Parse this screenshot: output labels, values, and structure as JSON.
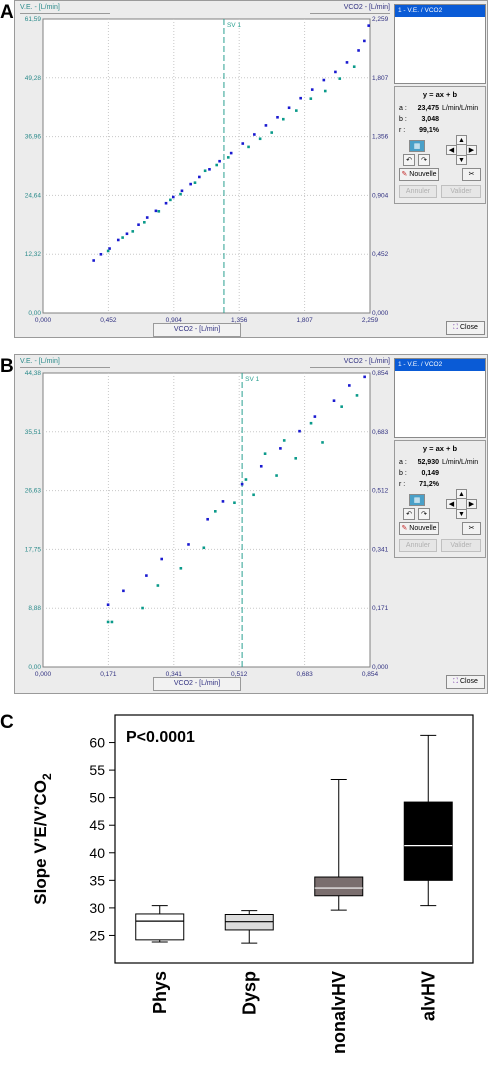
{
  "panels": [
    {
      "letter": "A",
      "left_tab": "V.E. - [L/min]",
      "right_tab": "VCO2 - [L/min]",
      "xlabel": "VCO2 - [L/min]",
      "sv_label": "SV 1",
      "yticks_left": [
        "61,59",
        "49,28",
        "36,96",
        "24,64",
        "12,32",
        "0,00"
      ],
      "yticks_right": [
        "2,259",
        "1,807",
        "1,356",
        "0,904",
        "0,452",
        "0,000"
      ],
      "xticks": [
        "0,000",
        "0,452",
        "0,904",
        "1,356",
        "1,807",
        "2,259"
      ],
      "list_item": "1 - V.E. / VCO2",
      "equation": "y = ax + b",
      "a_label": "a :",
      "a_value": "23,475",
      "a_unit": "L/min/L/min",
      "b_label": "b :",
      "b_value": "3,048",
      "r_label": "r :",
      "r_value": "99,1%",
      "new_button": "Nouvelle",
      "cancel_button": "Annuler",
      "validate_button": "Valider",
      "close_button": "Close"
    },
    {
      "letter": "B",
      "left_tab": "V.E. - [L/min]",
      "right_tab": "VCO2 - [L/min]",
      "xlabel": "VCO2 - [L/min]",
      "sv_label": "SV 1",
      "yticks_left": [
        "44,38",
        "35,51",
        "26,63",
        "17,75",
        "8,88",
        "0,00"
      ],
      "yticks_right": [
        "0,854",
        "0,683",
        "0,512",
        "0,341",
        "0,171",
        "0,000"
      ],
      "xticks": [
        "0,000",
        "0,171",
        "0,341",
        "0,512",
        "0,683",
        "0,854"
      ],
      "list_item": "1 - V.E. / VCO2",
      "equation": "y = ax + b",
      "a_label": "a :",
      "a_value": "52,930",
      "a_unit": "L/min/L/min",
      "b_label": "b :",
      "b_value": "0,149",
      "r_label": "r :",
      "r_value": "71,2%",
      "new_button": "Nouvelle",
      "cancel_button": "Annuler",
      "validate_button": "Valider",
      "close_button": "Close"
    }
  ],
  "panelC": {
    "letter": "C",
    "pvalue": "P<0.0001",
    "ylabel_main": "Slope V’E/V’CO",
    "ylabel_sub": "2"
  },
  "chart_data": [
    {
      "type": "scatter",
      "xlabel": "VCO2 - [L/min]",
      "ylabel": "V.E. - [L/min]",
      "xlim": [
        0,
        2.259
      ],
      "ylim": [
        0,
        61.59
      ],
      "regression": {
        "a": 23.475,
        "b": 3.048,
        "r": "99,1%"
      },
      "sv1_x": 1.25,
      "series": [
        {
          "color": "#1a1ad0",
          "points": [
            [
              0.35,
              11.0
            ],
            [
              0.4,
              12.3
            ],
            [
              0.46,
              13.5
            ],
            [
              0.52,
              15.3
            ],
            [
              0.58,
              16.6
            ],
            [
              0.66,
              18.5
            ],
            [
              0.72,
              20.0
            ],
            [
              0.78,
              21.4
            ],
            [
              0.85,
              23.0
            ],
            [
              0.9,
              24.3
            ],
            [
              0.96,
              25.6
            ],
            [
              1.02,
              27.0
            ],
            [
              1.08,
              28.5
            ],
            [
              1.15,
              30.1
            ],
            [
              1.22,
              31.8
            ],
            [
              1.3,
              33.5
            ],
            [
              1.38,
              35.5
            ],
            [
              1.46,
              37.4
            ],
            [
              1.54,
              39.3
            ],
            [
              1.62,
              41.0
            ],
            [
              1.7,
              43.0
            ],
            [
              1.78,
              45.0
            ],
            [
              1.86,
              46.8
            ],
            [
              1.94,
              48.8
            ],
            [
              2.02,
              50.5
            ],
            [
              2.1,
              52.5
            ],
            [
              2.18,
              55.0
            ],
            [
              2.22,
              57.0
            ],
            [
              2.25,
              60.2
            ]
          ]
        },
        {
          "color": "#0a9a8a",
          "points": [
            [
              0.45,
              13.0
            ],
            [
              0.55,
              15.8
            ],
            [
              0.62,
              17.1
            ],
            [
              0.7,
              19.0
            ],
            [
              0.8,
              21.3
            ],
            [
              0.88,
              23.7
            ],
            [
              0.95,
              24.9
            ],
            [
              1.05,
              27.3
            ],
            [
              1.12,
              29.8
            ],
            [
              1.2,
              31.0
            ],
            [
              1.28,
              32.6
            ],
            [
              1.42,
              34.8
            ],
            [
              1.5,
              36.5
            ],
            [
              1.58,
              37.8
            ],
            [
              1.66,
              40.6
            ],
            [
              1.75,
              42.4
            ],
            [
              1.85,
              44.9
            ],
            [
              1.95,
              46.5
            ],
            [
              2.05,
              49.1
            ],
            [
              2.15,
              51.6
            ]
          ]
        }
      ]
    },
    {
      "type": "scatter",
      "xlabel": "VCO2 - [L/min]",
      "ylabel": "V.E. - [L/min]",
      "xlim": [
        0,
        0.854
      ],
      "ylim": [
        0,
        44.38
      ],
      "regression": {
        "a": 52.93,
        "b": 0.149,
        "r": "71,2%"
      },
      "sv1_x": 0.52,
      "series": [
        {
          "color": "#1a1ad0",
          "points": [
            [
              0.17,
              9.4
            ],
            [
              0.21,
              11.5
            ],
            [
              0.27,
              13.8
            ],
            [
              0.31,
              16.3
            ],
            [
              0.38,
              18.5
            ],
            [
              0.43,
              22.3
            ],
            [
              0.47,
              25.0
            ],
            [
              0.52,
              27.6
            ],
            [
              0.57,
              30.3
            ],
            [
              0.62,
              33.0
            ],
            [
              0.67,
              35.6
            ],
            [
              0.71,
              37.8
            ],
            [
              0.76,
              40.2
            ],
            [
              0.8,
              42.5
            ],
            [
              0.84,
              43.8
            ]
          ]
        },
        {
          "color": "#0a9a8a",
          "points": [
            [
              0.17,
              6.8
            ],
            [
              0.18,
              6.8
            ],
            [
              0.26,
              8.9
            ],
            [
              0.3,
              12.3
            ],
            [
              0.36,
              14.9
            ],
            [
              0.42,
              18.0
            ],
            [
              0.45,
              23.5
            ],
            [
              0.5,
              24.8
            ],
            [
              0.53,
              28.3
            ],
            [
              0.55,
              26.0
            ],
            [
              0.58,
              32.2
            ],
            [
              0.61,
              28.9
            ],
            [
              0.63,
              34.2
            ],
            [
              0.66,
              31.5
            ],
            [
              0.7,
              36.8
            ],
            [
              0.73,
              33.9
            ],
            [
              0.78,
              39.3
            ],
            [
              0.82,
              41.0
            ]
          ]
        }
      ]
    },
    {
      "type": "boxplot",
      "title": "P<0.0001",
      "ylabel": "Slope V’E/V’CO2",
      "ylim": [
        20,
        65
      ],
      "yticks": [
        25,
        30,
        35,
        40,
        45,
        50,
        55,
        60
      ],
      "categories": [
        "Phys",
        "Dysp",
        "nonalvHV",
        "alvHV"
      ],
      "boxes": [
        {
          "name": "Phys",
          "min": 23.8,
          "q1": 24.2,
          "median": 27.6,
          "q3": 28.9,
          "max": 30.4,
          "color": "#ffffff"
        },
        {
          "name": "Dysp",
          "min": 23.6,
          "q1": 26.0,
          "median": 27.5,
          "q3": 28.8,
          "max": 29.5,
          "color": "#dcdcdc"
        },
        {
          "name": "nonalvHV",
          "min": 29.6,
          "q1": 32.2,
          "median": 33.6,
          "q3": 35.6,
          "max": 53.3,
          "color": "#7a6e6e"
        },
        {
          "name": "alvHV",
          "min": 30.4,
          "q1": 35.0,
          "median": 41.3,
          "q3": 49.2,
          "max": 61.3,
          "color": "#000000"
        }
      ]
    }
  ]
}
